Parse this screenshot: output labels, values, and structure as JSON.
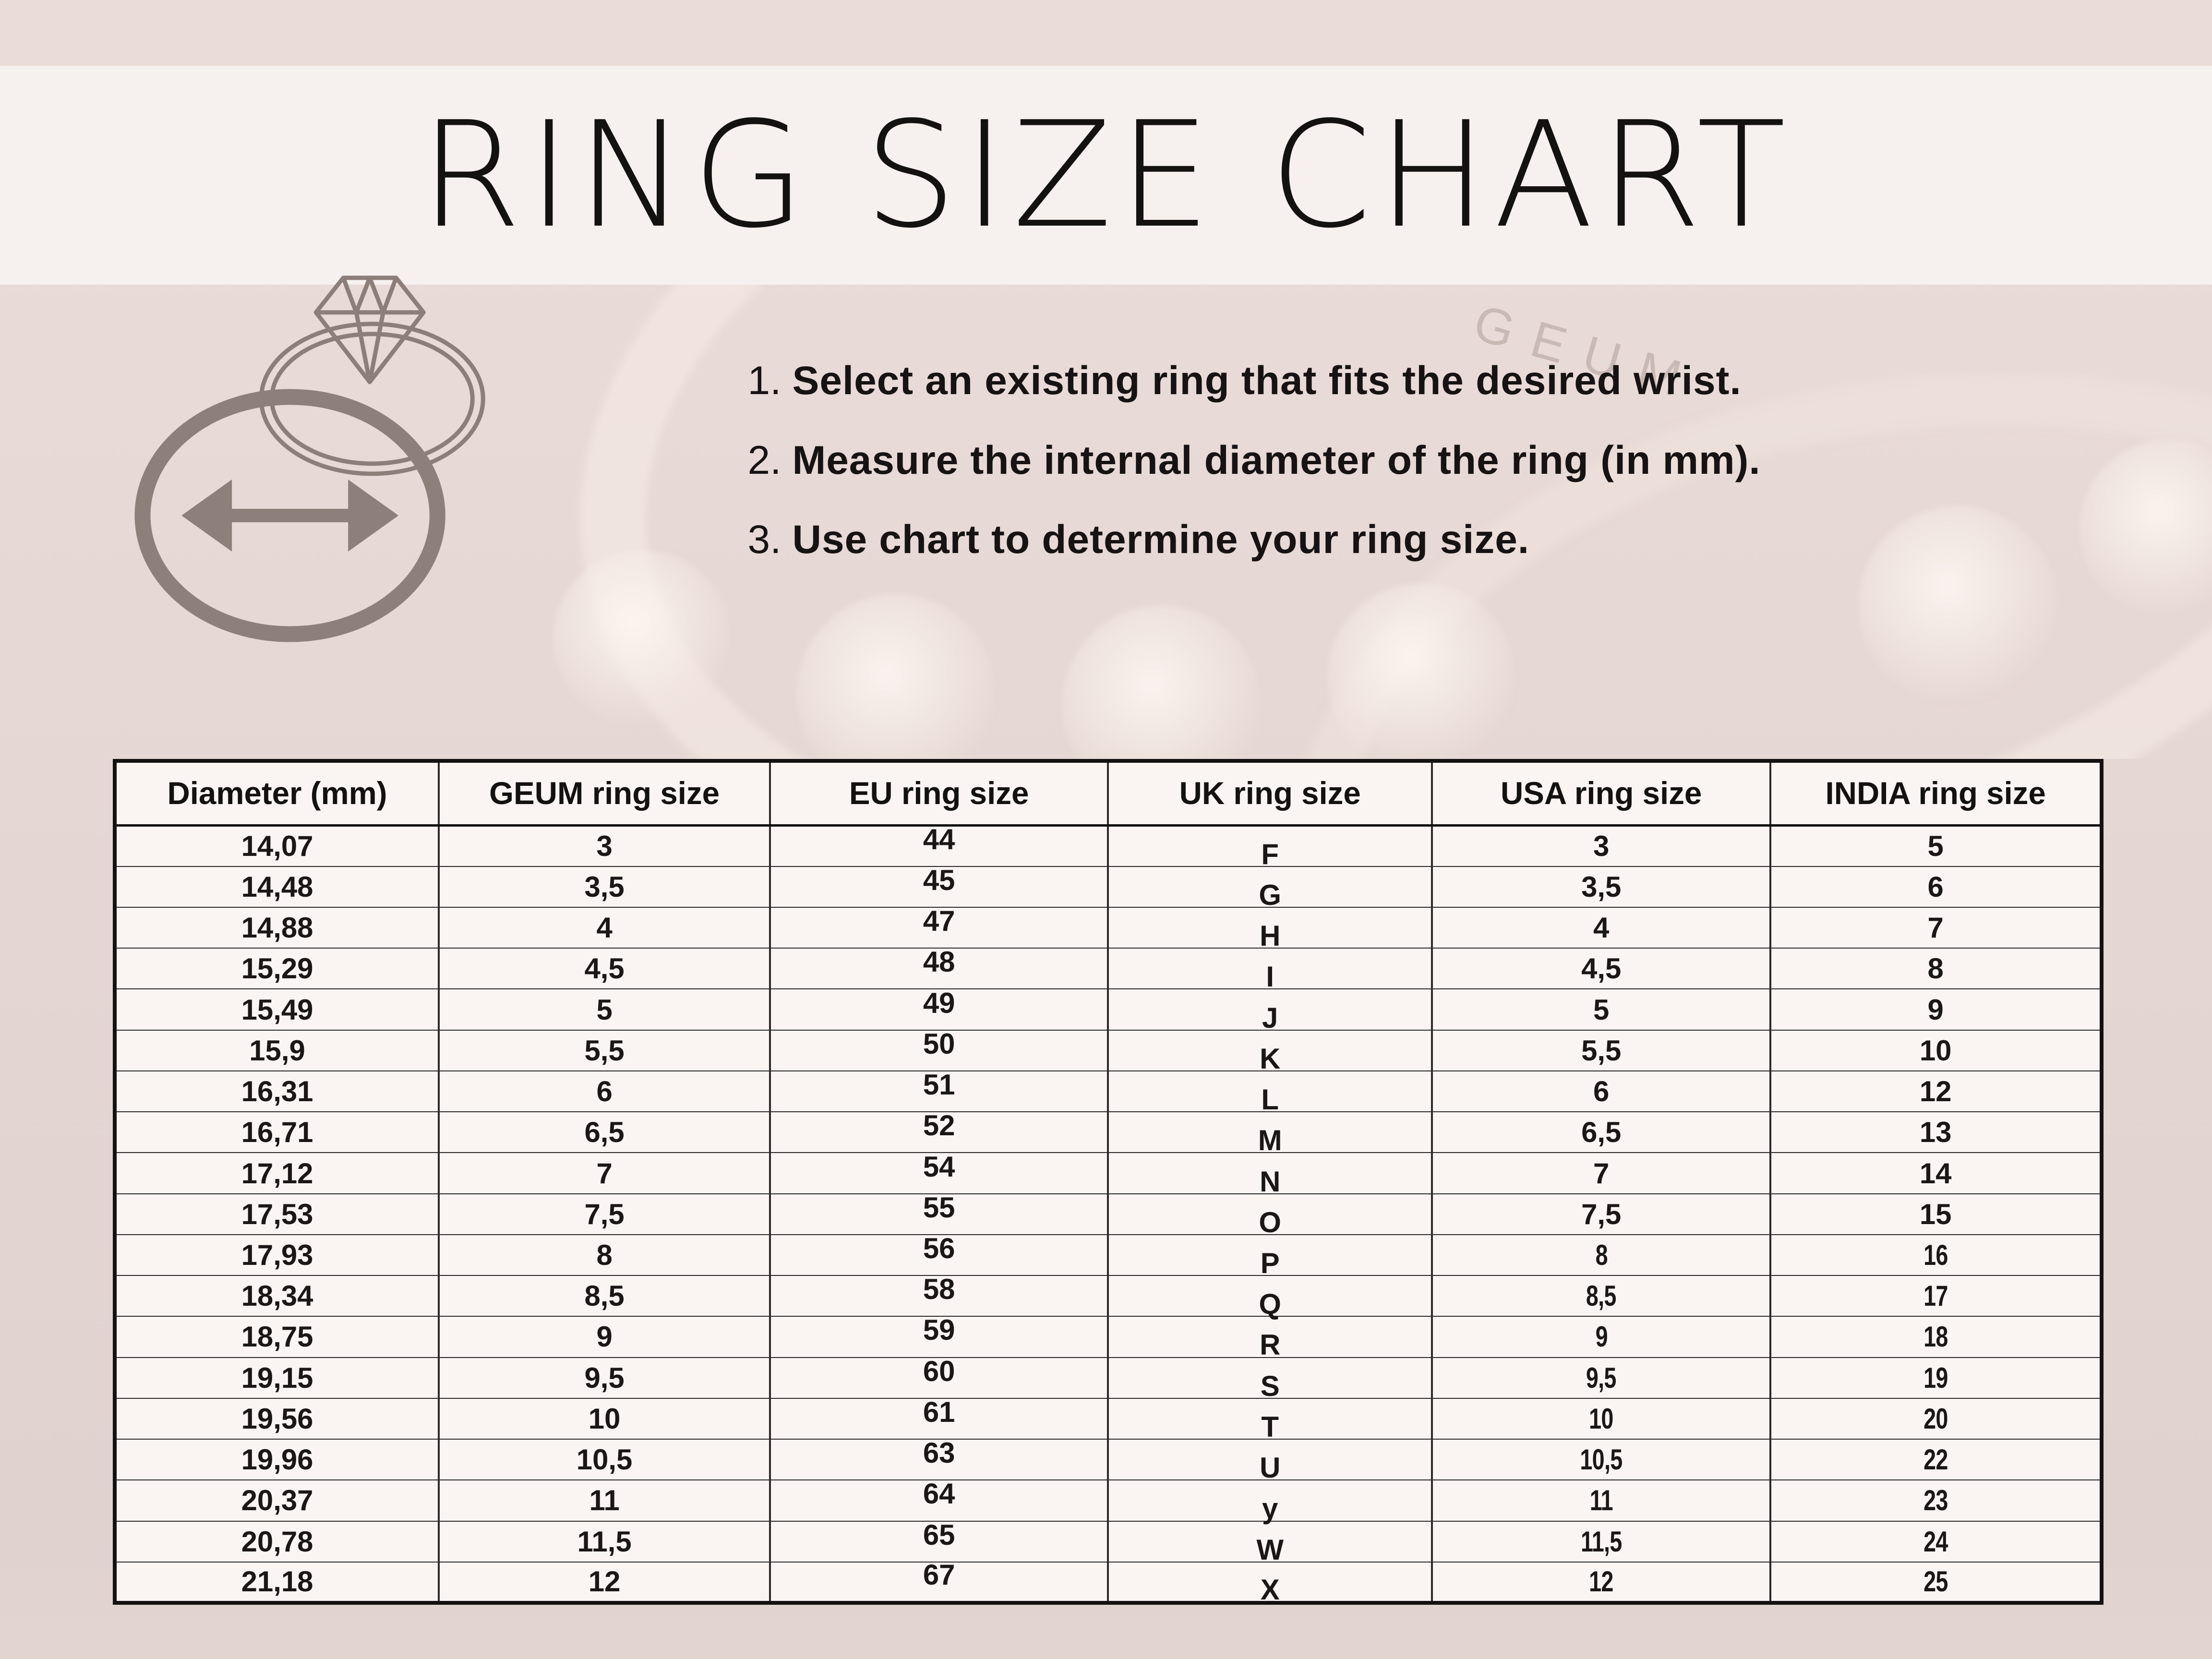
{
  "page": {
    "title": "RING SIZE CHART"
  },
  "instructions": [
    {
      "num": "1.",
      "text": "Select an existing ring that fits the desired wrist."
    },
    {
      "num": "2.",
      "text": "Measure the internal diameter of the ring (in mm)."
    },
    {
      "num": "3.",
      "text": "Use chart to determine your ring size."
    }
  ],
  "watermark": "GEUM",
  "icon": {
    "name": "ring-diameter-icon"
  },
  "table": {
    "headers": [
      "Diameter (mm)",
      "GEUM ring size",
      "EU ring size",
      "UK ring size",
      "USA ring size",
      "INDIA ring size"
    ],
    "columns": [
      "diameter_mm",
      "geum",
      "eu",
      "uk",
      "usa",
      "india"
    ],
    "rows": [
      [
        "14,07",
        "3",
        "44",
        "F",
        "3",
        "5"
      ],
      [
        "14,48",
        "3,5",
        "45",
        "G",
        "3,5",
        "6"
      ],
      [
        "14,88",
        "4",
        "47",
        "H",
        "4",
        "7"
      ],
      [
        "15,29",
        "4,5",
        "48",
        "I",
        "4,5",
        "8"
      ],
      [
        "15,49",
        "5",
        "49",
        "J",
        "5",
        "9"
      ],
      [
        "15,9",
        "5,5",
        "50",
        "K",
        "5,5",
        "10"
      ],
      [
        "16,31",
        "6",
        "51",
        "L",
        "6",
        "12"
      ],
      [
        "16,71",
        "6,5",
        "52",
        "M",
        "6,5",
        "13"
      ],
      [
        "17,12",
        "7",
        "54",
        "N",
        "7",
        "14"
      ],
      [
        "17,53",
        "7,5",
        "55",
        "O",
        "7,5",
        "15"
      ],
      [
        "17,93",
        "8",
        "56",
        "P",
        "8",
        "16"
      ],
      [
        "18,34",
        "8,5",
        "58",
        "Q",
        "8,5",
        "17"
      ],
      [
        "18,75",
        "9",
        "59",
        "R",
        "9",
        "18"
      ],
      [
        "19,15",
        "9,5",
        "60",
        "S",
        "9,5",
        "19"
      ],
      [
        "19,56",
        "10",
        "61",
        "T",
        "10",
        "20"
      ],
      [
        "19,96",
        "10,5",
        "63",
        "U",
        "10,5",
        "22"
      ],
      [
        "20,37",
        "11",
        "64",
        "y",
        "11",
        "23"
      ],
      [
        "20,78",
        "11,5",
        "65",
        "W",
        "11,5",
        "24"
      ],
      [
        "21,18",
        "12",
        "67",
        "X",
        "12",
        "25"
      ]
    ]
  },
  "colors": {
    "background": "#e7d9d5",
    "top_strip": "#eadcd8",
    "title_band": "#f6f0ee",
    "table_background": "#faf5f3",
    "text": "#171313",
    "icon": "#8c7e79",
    "watermark": "rgba(148,132,126,0.38)"
  }
}
